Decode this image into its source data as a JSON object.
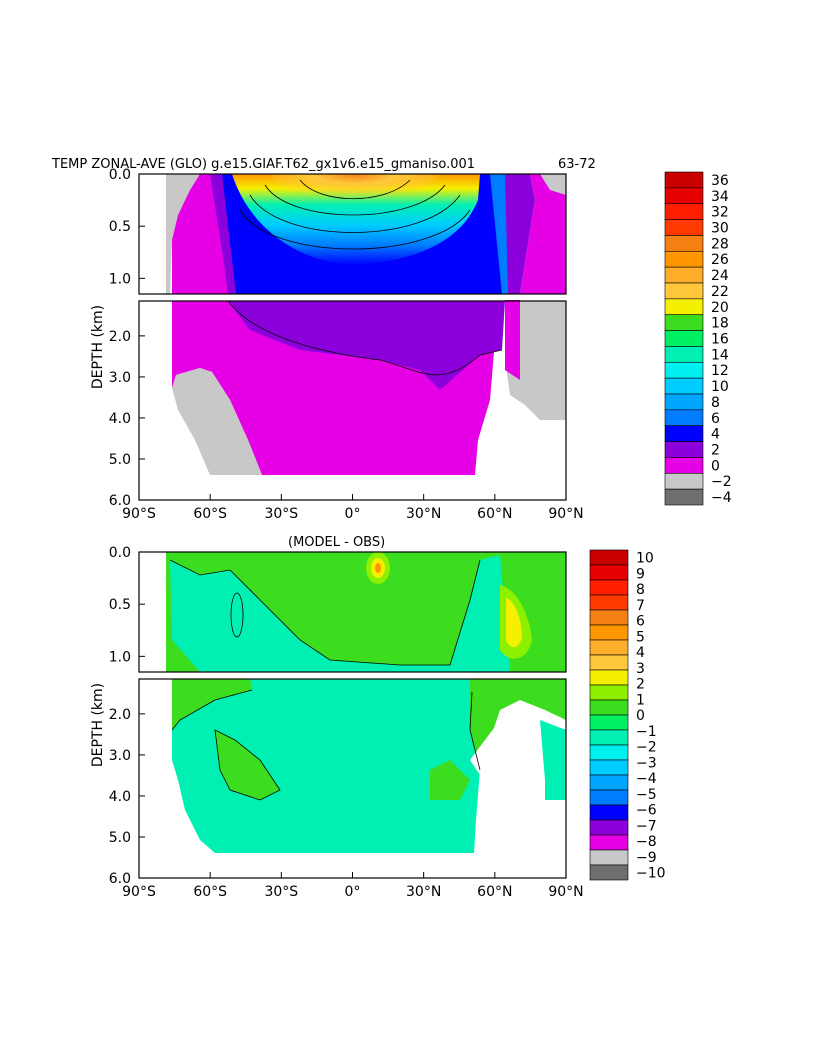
{
  "chart_data": [
    {
      "type": "heatmap",
      "title": "TEMP ZONAL-AVE (GLO) g.e15.GIAF.T62_gx1v6.e15_gmaniso.001",
      "title_suffix": "63-72",
      "ylabel": "DEPTH (km)",
      "x_ticks": [
        "90°S",
        "60°S",
        "30°S",
        "0°",
        "30°N",
        "60°N",
        "90°N"
      ],
      "y_ticks_upper": [
        "0.0",
        "0.5",
        "1.0"
      ],
      "y_ticks_lower": [
        "2.0",
        "3.0",
        "4.0",
        "5.0",
        "6.0"
      ],
      "xlim": [
        -90,
        90
      ],
      "ylim_km": [
        0,
        6
      ],
      "depth_break_km": 1.15,
      "colorbar_labels": [
        "36",
        "34",
        "32",
        "30",
        "28",
        "26",
        "24",
        "22",
        "20",
        "18",
        "16",
        "14",
        "12",
        "10",
        "8",
        "6",
        "4",
        "2",
        "0",
        "−2",
        "−4"
      ],
      "colorbar_colors": [
        "#c80000",
        "#e60000",
        "#ff1e00",
        "#ff3a00",
        "#f58014",
        "#ff9600",
        "#ffae2a",
        "#ffc83c",
        "#f5f000",
        "#3cdc1e",
        "#00f064",
        "#00f0b4",
        "#00f0f0",
        "#00cdff",
        "#00a5ff",
        "#007dff",
        "#0000ff",
        "#8c00dc",
        "#e600e6",
        "#c8c8c8",
        "#6e6e6e"
      ],
      "profile_peak_temp": 28,
      "ocean_floor_km": 5.4
    },
    {
      "type": "heatmap",
      "title": "(MODEL - OBS)",
      "ylabel": "DEPTH (km)",
      "x_ticks": [
        "90°S",
        "60°S",
        "30°S",
        "0°",
        "30°N",
        "60°N",
        "90°N"
      ],
      "y_ticks_upper": [
        "0.0",
        "0.5",
        "1.0"
      ],
      "y_ticks_lower": [
        "2.0",
        "3.0",
        "4.0",
        "5.0",
        "6.0"
      ],
      "xlim": [
        -90,
        90
      ],
      "ylim_km": [
        0,
        6
      ],
      "depth_break_km": 1.15,
      "colorbar_labels": [
        "10",
        "9",
        "8",
        "7",
        "6",
        "5",
        "4",
        "3",
        "2",
        "1",
        "0",
        "−1",
        "−2",
        "−3",
        "−4",
        "−5",
        "−6",
        "−7",
        "−8",
        "−9",
        "−10"
      ],
      "colorbar_colors": [
        "#c80000",
        "#e60000",
        "#ff1e00",
        "#ff3a00",
        "#f58014",
        "#ff9600",
        "#ffae2a",
        "#ffc83c",
        "#f5f000",
        "#8cf000",
        "#3cdc1e",
        "#00f064",
        "#00f0b4",
        "#00f0f0",
        "#00cdff",
        "#00a5ff",
        "#007dff",
        "#0000ff",
        "#8c00dc",
        "#e600e6",
        "#c8c8c8",
        "#6e6e6e"
      ],
      "max_anomaly_c": 3,
      "ocean_floor_km": 5.4
    }
  ]
}
